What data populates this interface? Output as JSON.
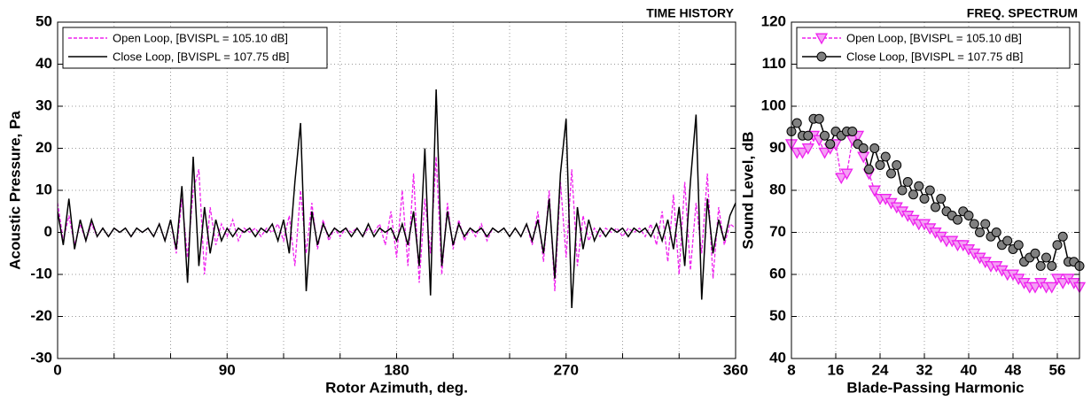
{
  "chart_data": [
    {
      "type": "line",
      "title": "TIME HISTORY",
      "xlabel": "Rotor Azimuth, deg.",
      "ylabel": "Acoustic Pressure, Pa",
      "x": [
        0,
        3,
        6,
        9,
        12,
        15,
        18,
        21,
        24,
        27,
        30,
        33,
        36,
        39,
        42,
        45,
        48,
        51,
        54,
        57,
        60,
        63,
        66,
        69,
        72,
        75,
        78,
        81,
        84,
        87,
        90,
        93,
        96,
        99,
        102,
        105,
        108,
        111,
        114,
        117,
        120,
        123,
        126,
        129,
        132,
        135,
        138,
        141,
        144,
        147,
        150,
        153,
        156,
        159,
        162,
        165,
        168,
        171,
        174,
        177,
        180,
        183,
        186,
        189,
        192,
        195,
        198,
        201,
        204,
        207,
        210,
        213,
        216,
        219,
        222,
        225,
        228,
        231,
        234,
        237,
        240,
        243,
        246,
        249,
        252,
        255,
        258,
        261,
        264,
        267,
        270,
        273,
        276,
        279,
        282,
        285,
        288,
        291,
        294,
        297,
        300,
        303,
        306,
        309,
        312,
        315,
        318,
        321,
        324,
        327,
        330,
        333,
        336,
        339,
        342,
        345,
        348,
        351,
        354,
        357,
        360
      ],
      "series": [
        {
          "name": "Open Loop, [BVISPL = 105.10 dB]",
          "color": "#ee22ee",
          "dash": true,
          "values": [
            7,
            -2,
            4,
            -3,
            2,
            -2,
            2,
            -1,
            1,
            -1,
            1,
            0,
            1,
            -1,
            1,
            0,
            1,
            -1,
            2,
            -2,
            3,
            -5,
            8,
            -6,
            10,
            15,
            -10,
            6,
            -3,
            2,
            -1,
            3,
            -2,
            1,
            0,
            1,
            -1,
            1,
            0,
            2,
            -2,
            4,
            -8,
            10,
            -5,
            7,
            -4,
            3,
            -2,
            1,
            -1,
            1,
            0,
            1,
            -1,
            1,
            0,
            2,
            -3,
            5,
            -6,
            10,
            -8,
            14,
            -12,
            8,
            -5,
            18,
            -10,
            7,
            -4,
            3,
            -2,
            1,
            -1,
            2,
            -2,
            1,
            0,
            1,
            -1,
            1,
            -1,
            2,
            -3,
            5,
            -7,
            10,
            -14,
            12,
            -6,
            15,
            -8,
            4,
            -2,
            1,
            -1,
            1,
            0,
            1,
            -1,
            1,
            0,
            1,
            -1,
            2,
            -3,
            5,
            -7,
            9,
            -10,
            12,
            -9,
            7,
            -5,
            14,
            -11,
            6,
            -3,
            2,
            1
          ]
        },
        {
          "name": "Close Loop, [BVISPL = 107.75 dB]",
          "color": "#000000",
          "dash": false,
          "values": [
            5,
            -3,
            8,
            -4,
            3,
            -2,
            3,
            -1,
            1,
            -1,
            1,
            0,
            1,
            -1,
            1,
            0,
            1,
            -1,
            2,
            -2,
            3,
            -4,
            11,
            -12,
            18,
            -8,
            6,
            -5,
            3,
            -2,
            1,
            -1,
            1,
            0,
            1,
            -1,
            1,
            0,
            2,
            -2,
            3,
            -5,
            12,
            26,
            -14,
            5,
            -3,
            2,
            -1,
            1,
            0,
            1,
            -1,
            1,
            -1,
            2,
            -1,
            1,
            0,
            1,
            -2,
            2,
            -3,
            5,
            -8,
            20,
            -15,
            34,
            -8,
            5,
            -3,
            2,
            -1,
            1,
            0,
            1,
            -1,
            1,
            0,
            1,
            -1,
            1,
            -1,
            2,
            -2,
            3,
            -5,
            8,
            -11,
            14,
            27,
            -18,
            6,
            -4,
            3,
            -2,
            1,
            -1,
            1,
            0,
            1,
            -1,
            1,
            0,
            1,
            -1,
            2,
            -2,
            3,
            -4,
            6,
            -8,
            12,
            28,
            -16,
            8,
            -5,
            3,
            -2,
            4,
            7
          ]
        }
      ],
      "xlim": [
        0,
        360
      ],
      "ylim": [
        -30,
        50
      ],
      "xticks": [
        0,
        90,
        180,
        270,
        360
      ],
      "xminor": [
        30,
        60,
        120,
        150,
        210,
        240,
        300,
        330
      ],
      "yticks": [
        -30,
        -20,
        -10,
        0,
        10,
        20,
        30,
        40,
        50
      ],
      "grid": true,
      "legend": "upper left"
    },
    {
      "type": "line",
      "title": "FREQ. SPECTRUM",
      "xlabel": "Blade-Passing Harmonic",
      "ylabel": "Sound Level, dB",
      "x": [
        8,
        9,
        10,
        11,
        12,
        13,
        14,
        15,
        16,
        17,
        18,
        19,
        20,
        21,
        22,
        23,
        24,
        25,
        26,
        27,
        28,
        29,
        30,
        31,
        32,
        33,
        34,
        35,
        36,
        37,
        38,
        39,
        40,
        41,
        42,
        43,
        44,
        45,
        46,
        47,
        48,
        49,
        50,
        51,
        52,
        53,
        54,
        55,
        56,
        57,
        58,
        59,
        60
      ],
      "series": [
        {
          "name": "Open Loop, [BVISPL = 105.10 dB]",
          "color": "#ee22ee",
          "dash": true,
          "marker": "triangle-down",
          "marker_color": "#f4a0f4",
          "values": [
            91,
            89,
            89,
            90,
            93,
            92,
            89,
            90,
            91,
            83,
            84,
            92,
            93,
            88,
            84,
            80,
            78,
            78,
            77,
            76,
            75,
            74,
            73,
            72,
            72,
            71,
            70,
            69,
            68,
            68,
            67,
            67,
            66,
            65,
            64,
            63,
            62,
            62,
            61,
            60,
            60,
            59,
            58,
            57,
            57,
            58,
            57,
            57,
            59,
            58,
            59,
            58,
            57
          ]
        },
        {
          "name": "Close Loop, [BVISPL = 107.75 dB]",
          "color": "#000000",
          "dash": false,
          "marker": "circle",
          "marker_color": "#808080",
          "values": [
            94,
            96,
            93,
            93,
            97,
            97,
            93,
            91,
            94,
            93,
            94,
            94,
            91,
            90,
            85,
            90,
            86,
            88,
            84,
            86,
            80,
            82,
            79,
            81,
            78,
            80,
            76,
            78,
            75,
            74,
            73,
            75,
            74,
            72,
            70,
            72,
            69,
            70,
            67,
            68,
            66,
            67,
            63,
            64,
            65,
            62,
            64,
            62,
            67,
            69,
            63,
            63,
            62
          ]
        }
      ],
      "xlim": [
        8,
        60
      ],
      "ylim": [
        40,
        120
      ],
      "xticks": [
        8,
        16,
        24,
        32,
        40,
        48,
        56
      ],
      "yticks": [
        40,
        50,
        60,
        70,
        80,
        90,
        100,
        110,
        120
      ],
      "grid": true,
      "legend": "upper left"
    }
  ]
}
